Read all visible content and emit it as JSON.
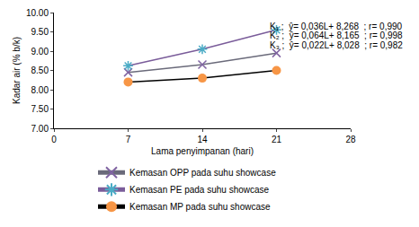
{
  "chart_data": {
    "type": "line",
    "x_label": "Lama penyimpanan (hari)",
    "y_label": "Kadar air (% b/k)",
    "x": [
      7,
      14,
      21
    ],
    "series": [
      {
        "name": "Kemasan OPP pada suhu showcase",
        "color": "#8064a2",
        "marker": "x",
        "values": [
          8.45,
          8.65,
          8.95
        ]
      },
      {
        "name": "Kemasan PE pada suhu showcase",
        "color": "#4bacc6",
        "marker": "asterisk",
        "values": [
          8.62,
          9.05,
          9.55
        ]
      },
      {
        "name": "Kemasan MP pada suhu showcase",
        "color": "#f79646",
        "marker": "circle",
        "values": [
          8.2,
          8.3,
          8.5
        ]
      }
    ],
    "annotations": [
      "K₁ ;  ŷ= 0,036L+ 8,268  ; r= 0,990",
      "K₂ ;  ŷ= 0,064L+ 8,165  ; r= 0,998",
      "K₃ ;  ŷ= 0,022L+ 8,028  ; r= 0,982"
    ],
    "xlim": [
      0,
      28
    ],
    "xticks": [
      0,
      7,
      14,
      21,
      28
    ],
    "ylim": [
      7,
      10
    ],
    "yticks": [
      {
        "value": 7,
        "label": "7.00"
      },
      {
        "value": 7.5,
        "label": "7.50"
      },
      {
        "value": 8,
        "label": "8.00"
      },
      {
        "value": 8.5,
        "label": "8.50"
      },
      {
        "value": 9,
        "label": "9.00"
      },
      {
        "value": 9.5,
        "label": "9.50"
      },
      {
        "value": 10,
        "label": "10.00"
      }
    ],
    "grid": false,
    "legend": "bottom"
  }
}
